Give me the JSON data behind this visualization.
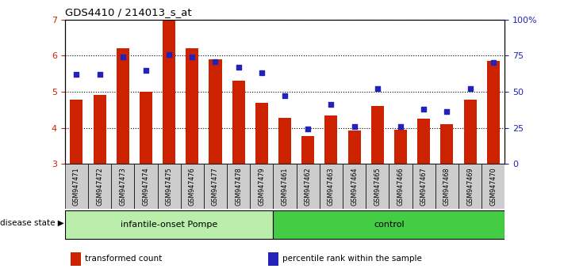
{
  "title": "GDS4410 / 214013_s_at",
  "samples": [
    "GSM947471",
    "GSM947472",
    "GSM947473",
    "GSM947474",
    "GSM947475",
    "GSM947476",
    "GSM947477",
    "GSM947478",
    "GSM947479",
    "GSM947461",
    "GSM947462",
    "GSM947463",
    "GSM947464",
    "GSM947465",
    "GSM947466",
    "GSM947467",
    "GSM947468",
    "GSM947469",
    "GSM947470"
  ],
  "bar_values": [
    4.78,
    4.92,
    6.2,
    5.0,
    6.98,
    6.2,
    5.9,
    5.3,
    4.7,
    4.28,
    3.78,
    4.35,
    3.93,
    4.6,
    3.95,
    4.25,
    4.1,
    4.78,
    5.85
  ],
  "dot_values_pct": [
    62,
    62,
    74,
    65,
    76,
    74,
    71,
    67,
    63,
    47,
    24,
    41,
    26,
    52,
    26,
    38,
    36,
    52,
    70
  ],
  "ylim_left": [
    3,
    7
  ],
  "ylim_right": [
    0,
    100
  ],
  "yticks_left": [
    3,
    4,
    5,
    6,
    7
  ],
  "yticks_right": [
    0,
    25,
    50,
    75,
    100
  ],
  "bar_color": "#cc2200",
  "dot_color": "#2222bb",
  "bar_baseline": 3.0,
  "groups": [
    {
      "label": "infantile-onset Pompe",
      "start": 0,
      "end": 9,
      "color": "#bbeeaa"
    },
    {
      "label": "control",
      "start": 9,
      "end": 19,
      "color": "#44cc44"
    }
  ],
  "group_label_prefix": "disease state",
  "legend_items": [
    {
      "label": "transformed count",
      "color": "#cc2200"
    },
    {
      "label": "percentile rank within the sample",
      "color": "#2222bb"
    }
  ],
  "bg_color": "#ffffff",
  "plot_bg_color": "#ffffff",
  "tick_label_color_left": "#cc2200",
  "tick_label_color_right": "#2222bb",
  "cell_bg_color": "#cccccc",
  "grid_color": "#000000"
}
